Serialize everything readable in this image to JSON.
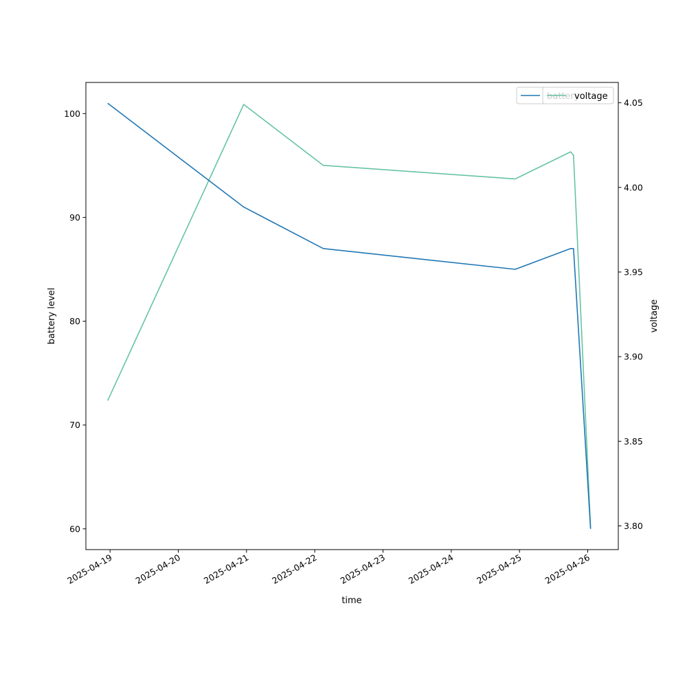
{
  "chart_data": {
    "type": "line",
    "title": "",
    "xlabel": "time",
    "ylabel": "battery level",
    "y2label": "voltage",
    "xlim": [
      "2025-04-18T15:30",
      "2025-04-26T10:45"
    ],
    "ylim": [
      58,
      103
    ],
    "y2lim": [
      3.786,
      4.062
    ],
    "x_ticks": [
      "2025-04-19",
      "2025-04-20",
      "2025-04-21",
      "2025-04-22",
      "2025-04-23",
      "2025-04-24",
      "2025-04-25",
      "2025-04-26"
    ],
    "y_ticks": [
      60,
      70,
      80,
      90,
      100
    ],
    "y2_ticks": [
      "3.80",
      "3.85",
      "3.90",
      "3.95",
      "4.00",
      "4.05"
    ],
    "grid": false,
    "legend_position": "top-right",
    "series": [
      {
        "name": "battery",
        "axis": "left",
        "color": "#1f77b4",
        "points": [
          {
            "x": "2025-04-18T23:10",
            "y": 101
          },
          {
            "x": "2025-04-20T23:00",
            "y": 91
          },
          {
            "x": "2025-04-22T03:00",
            "y": 87
          },
          {
            "x": "2025-04-24T22:30",
            "y": 85
          },
          {
            "x": "2025-04-25T18:00",
            "y": 87
          },
          {
            "x": "2025-04-25T19:00",
            "y": 87
          },
          {
            "x": "2025-04-26T01:00",
            "y": 60
          }
        ]
      },
      {
        "name": "voltage",
        "axis": "right",
        "color": "#66c2a5",
        "points": [
          {
            "x": "2025-04-18T23:10",
            "y": 3.874
          },
          {
            "x": "2025-04-20T23:00",
            "y": 4.049
          },
          {
            "x": "2025-04-22T03:00",
            "y": 4.013
          },
          {
            "x": "2025-04-24T22:30",
            "y": 4.005
          },
          {
            "x": "2025-04-25T18:00",
            "y": 4.021
          },
          {
            "x": "2025-04-25T19:00",
            "y": 4.019
          },
          {
            "x": "2025-04-26T01:00",
            "y": 3.799
          }
        ]
      }
    ]
  }
}
